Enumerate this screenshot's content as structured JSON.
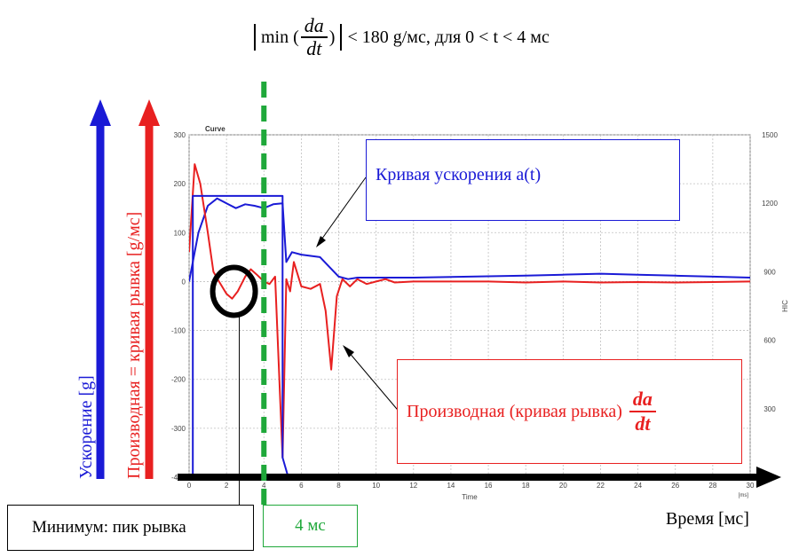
{
  "formula": {
    "abs_open": "",
    "prefix": "min (",
    "frac_num": "da",
    "frac_den": "dt",
    "mid": ")",
    "suffix": "< 180 g/мс, для 0 < t < 4 мс"
  },
  "axis_labels": {
    "acceleration": "Ускорение [g]",
    "derivative": "Производная = кривая рывка [g/мс]",
    "time": "Время [мс]"
  },
  "annotations": {
    "accel_box": "Кривая ускорения a(t)",
    "deriv_box_text": "Производная (кривая рывка)",
    "deriv_frac_num": "da",
    "deriv_frac_den": "dt",
    "min_box": "Минимум: пик рывка",
    "four_ms_box": "4 мс"
  },
  "colors": {
    "acceleration": "#1a1ad6",
    "derivative": "#e82020",
    "marker_4ms": "#1fa83a",
    "axes": "#000000",
    "grid": "#bfbfbf"
  },
  "chart_data": {
    "type": "line",
    "title": "Curve",
    "xlabel": "Time",
    "x_unit": "[ms]",
    "y2label": "HIC",
    "xlim": [
      0,
      30
    ],
    "ylim": [
      -400,
      300
    ],
    "y2lim": [
      0,
      1500
    ],
    "x_ticks": [
      0,
      2,
      4,
      6,
      8,
      10,
      12,
      14,
      16,
      18,
      20,
      22,
      24,
      26,
      28,
      30
    ],
    "y_ticks": [
      300,
      200,
      100,
      0,
      -100,
      -200,
      -300,
      -400
    ],
    "y2_ticks": [
      1500,
      1200,
      900,
      600,
      300
    ],
    "grid": true,
    "vline_x": 4,
    "series": [
      {
        "color": "#1a1ad6",
        "x": [
          0,
          0.5,
          1,
          1.5,
          2,
          2.5,
          3,
          3.5,
          4,
          4.5,
          5,
          5.2,
          5.5,
          6,
          7,
          7.5,
          8,
          8.5,
          9,
          10,
          12,
          15,
          18,
          20,
          22,
          24,
          26,
          28,
          30
        ],
        "y": [
          0,
          100,
          155,
          170,
          160,
          150,
          158,
          155,
          150,
          158,
          160,
          40,
          60,
          55,
          50,
          30,
          10,
          5,
          8,
          8,
          8,
          10,
          12,
          14,
          16,
          14,
          12,
          10,
          8
        ]
      },
      {
        "color": "#e82020",
        "x": [
          0,
          0.3,
          0.6,
          1,
          1.3,
          1.6,
          2,
          2.3,
          2.6,
          3,
          3.3,
          3.6,
          4,
          4.3,
          4.6,
          5,
          5.2,
          5.4,
          5.6,
          6,
          6.5,
          7,
          7.3,
          7.6,
          7.9,
          8.2,
          8.6,
          9,
          9.5,
          10,
          10.5,
          11,
          12,
          14,
          16,
          18,
          20,
          22,
          24,
          26,
          28,
          30
        ],
        "y": [
          60,
          240,
          200,
          100,
          20,
          0,
          -25,
          -35,
          -20,
          10,
          25,
          15,
          0,
          -5,
          10,
          -360,
          5,
          -20,
          40,
          -10,
          -15,
          -5,
          -60,
          -180,
          -30,
          5,
          -10,
          5,
          -5,
          0,
          5,
          -2,
          0,
          0,
          0,
          -2,
          0,
          -2,
          -1,
          -2,
          -1,
          0
        ]
      },
      {
        "color": "#1a1ad6",
        "x": [
          0,
          0.2,
          0.2,
          5,
          5,
          5.3
        ],
        "y": [
          -400,
          -400,
          175,
          175,
          -360,
          -400
        ]
      }
    ]
  }
}
